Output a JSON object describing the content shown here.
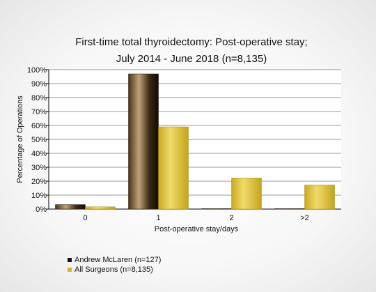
{
  "chart_data": {
    "type": "bar",
    "title_lines": [
      "First-time total thyroidectomy: Post-operative stay;",
      "July 2014 - June 2018 (n=8,135)"
    ],
    "xlabel": "Post-operative stay/days",
    "ylabel": "Percentage of Operations",
    "categories": [
      "0",
      "1",
      "2",
      ">2"
    ],
    "ylim": [
      0,
      100
    ],
    "yticks": [
      "0%",
      "10%",
      "20%",
      "30%",
      "40%",
      "50%",
      "60%",
      "70%",
      "80%",
      "90%",
      "100%"
    ],
    "grid": true,
    "legend_position": "bottom-left",
    "series": [
      {
        "name": "Andrew McLaren (n=127)",
        "values": [
          3.2,
          97,
          0.3,
          0.3
        ],
        "color": "#2a1c0e"
      },
      {
        "name": "All Surgeons (n=8,135)",
        "values": [
          1.6,
          59,
          22.3,
          17.3
        ],
        "color": "#d4b62a"
      }
    ]
  }
}
